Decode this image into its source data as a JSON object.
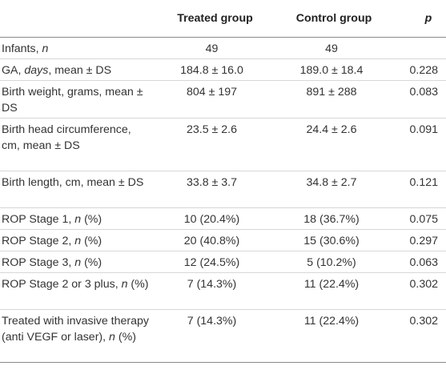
{
  "table": {
    "headers": [
      "",
      "Treated group",
      "Control group",
      "p"
    ],
    "rows": [
      {
        "label_parts": [
          {
            "t": "Infants, "
          },
          {
            "t": "n",
            "i": true
          }
        ],
        "treated": "49",
        "control": "49",
        "p": ""
      },
      {
        "label_parts": [
          {
            "t": "GA, "
          },
          {
            "t": "days",
            "i": true
          },
          {
            "t": ", mean ± DS"
          }
        ],
        "treated": "184.8 ± 16.0",
        "control": "189.0 ± 18.4",
        "p": "0.228"
      },
      {
        "label_parts": [
          {
            "t": "Birth weight, grams, mean ± DS"
          }
        ],
        "treated": "804 ± 197",
        "control": "891 ± 288",
        "p": "0.083"
      },
      {
        "label_parts": [
          {
            "t": "Birth head circumference, cm, mean ± DS"
          }
        ],
        "treated": "23.5 ± 2.6",
        "control": "24.4 ± 2.6",
        "p": "0.091"
      },
      {
        "label_parts": [
          {
            "t": "Birth length, cm, mean ± DS"
          }
        ],
        "treated": "33.8 ± 3.7",
        "control": "34.8 ± 2.7",
        "p": "0.121"
      },
      {
        "label_parts": [
          {
            "t": "ROP Stage 1, "
          },
          {
            "t": "n",
            "i": true
          },
          {
            "t": " (%)"
          }
        ],
        "treated": "10 (20.4%)",
        "control": "18 (36.7%)",
        "p": "0.075"
      },
      {
        "label_parts": [
          {
            "t": "ROP Stage 2, "
          },
          {
            "t": "n",
            "i": true
          },
          {
            "t": " (%)"
          }
        ],
        "treated": "20 (40.8%)",
        "control": "15 (30.6%)",
        "p": "0.297"
      },
      {
        "label_parts": [
          {
            "t": "ROP Stage 3, "
          },
          {
            "t": "n",
            "i": true
          },
          {
            "t": " (%)"
          }
        ],
        "treated": "12 (24.5%)",
        "control": "5 (10.2%)",
        "p": "0.063"
      },
      {
        "label_parts": [
          {
            "t": "ROP Stage 2 or 3 plus, "
          },
          {
            "t": "n",
            "i": true
          },
          {
            "t": " (%)"
          }
        ],
        "treated": "7 (14.3%)",
        "control": "11 (22.4%)",
        "p": "0.302"
      },
      {
        "label_parts": [
          {
            "t": "Treated with invasive therapy (anti VEGF or laser), "
          },
          {
            "t": "n",
            "i": true
          },
          {
            "t": " (%)"
          }
        ],
        "treated": "7 (14.3%)",
        "control": "11 (22.4%)",
        "p": "0.302"
      }
    ]
  }
}
